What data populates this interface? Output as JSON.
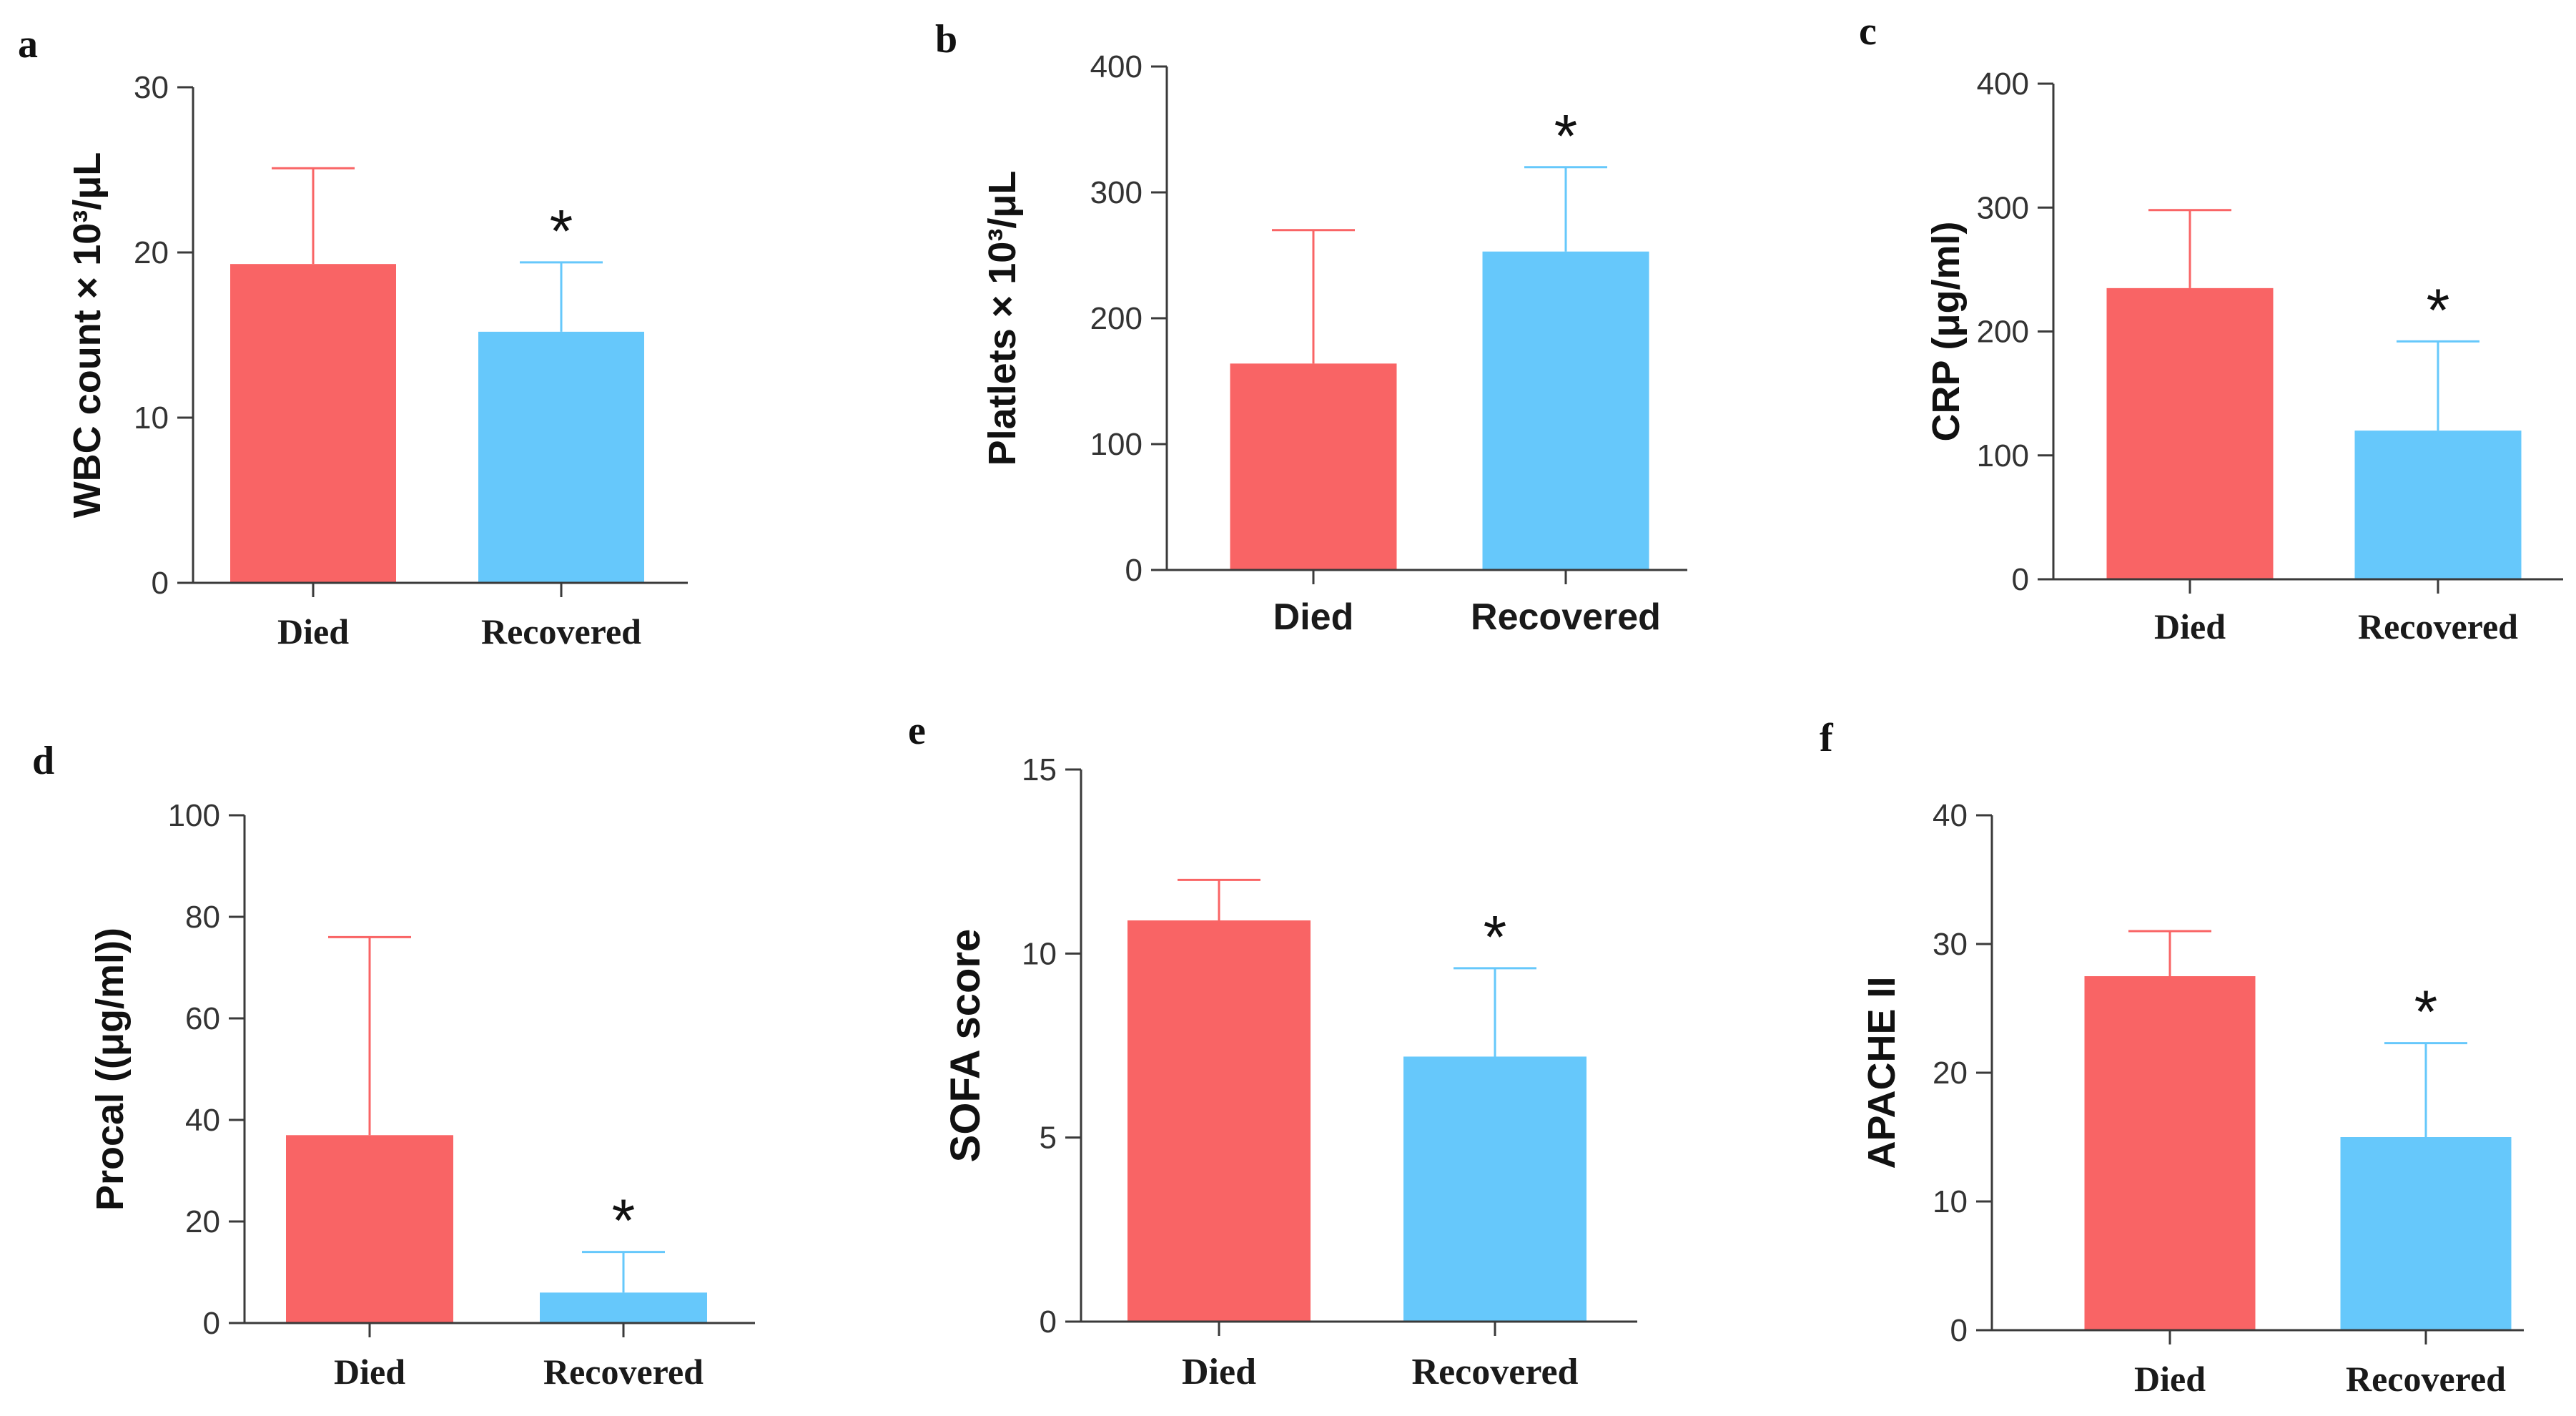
{
  "colors": {
    "died": "#f96465",
    "recovered": "#66c8fb"
  },
  "chart_data": [
    {
      "panel": "a",
      "type": "bar",
      "title": "",
      "categories": [
        "Died",
        "Recovered"
      ],
      "values": [
        19.3,
        15.2
      ],
      "error": [
        5.8,
        4.2
      ],
      "ylabel": "WBC count × 10³/μL",
      "ylim": [
        0,
        30
      ],
      "yticks": [
        0,
        10,
        20,
        30
      ],
      "significance": "*"
    },
    {
      "panel": "b",
      "type": "bar",
      "title": "",
      "categories": [
        "Died",
        "Recovered"
      ],
      "values": [
        164,
        253
      ],
      "error": [
        106,
        67
      ],
      "ylabel": "Platlets × 10³/μL",
      "ylim": [
        0,
        400
      ],
      "yticks": [
        0,
        100,
        200,
        300,
        400
      ],
      "significance": "*"
    },
    {
      "panel": "c",
      "type": "bar",
      "title": "",
      "categories": [
        "Died",
        "Recovered"
      ],
      "values": [
        235,
        120
      ],
      "error": [
        63,
        72
      ],
      "ylabel": "CRP (μg/ml)",
      "ylim": [
        0,
        400
      ],
      "yticks": [
        0,
        100,
        200,
        300,
        400
      ],
      "significance": "*"
    },
    {
      "panel": "d",
      "type": "bar",
      "title": "",
      "categories": [
        "Died",
        "Recovered"
      ],
      "values": [
        37,
        6
      ],
      "error": [
        39,
        8
      ],
      "ylabel": "Procal ((μg/ml))",
      "ylim": [
        0,
        100
      ],
      "yticks": [
        0,
        20,
        40,
        60,
        80,
        100
      ],
      "significance": "*"
    },
    {
      "panel": "e",
      "type": "bar",
      "title": "",
      "categories": [
        "Died",
        "Recovered"
      ],
      "values": [
        10.9,
        7.2
      ],
      "error": [
        1.1,
        2.4
      ],
      "ylabel": "SOFA score",
      "ylim": [
        0,
        15
      ],
      "yticks": [
        0,
        5,
        10,
        15
      ],
      "significance": "*"
    },
    {
      "panel": "f",
      "type": "bar",
      "title": "",
      "categories": [
        "Died",
        "Recovered"
      ],
      "values": [
        27.5,
        15
      ],
      "error": [
        3.5,
        7.3
      ],
      "ylabel": "APACHE II",
      "ylim": [
        0,
        40
      ],
      "yticks": [
        0,
        10,
        20,
        30,
        40
      ],
      "significance": "*"
    }
  ]
}
